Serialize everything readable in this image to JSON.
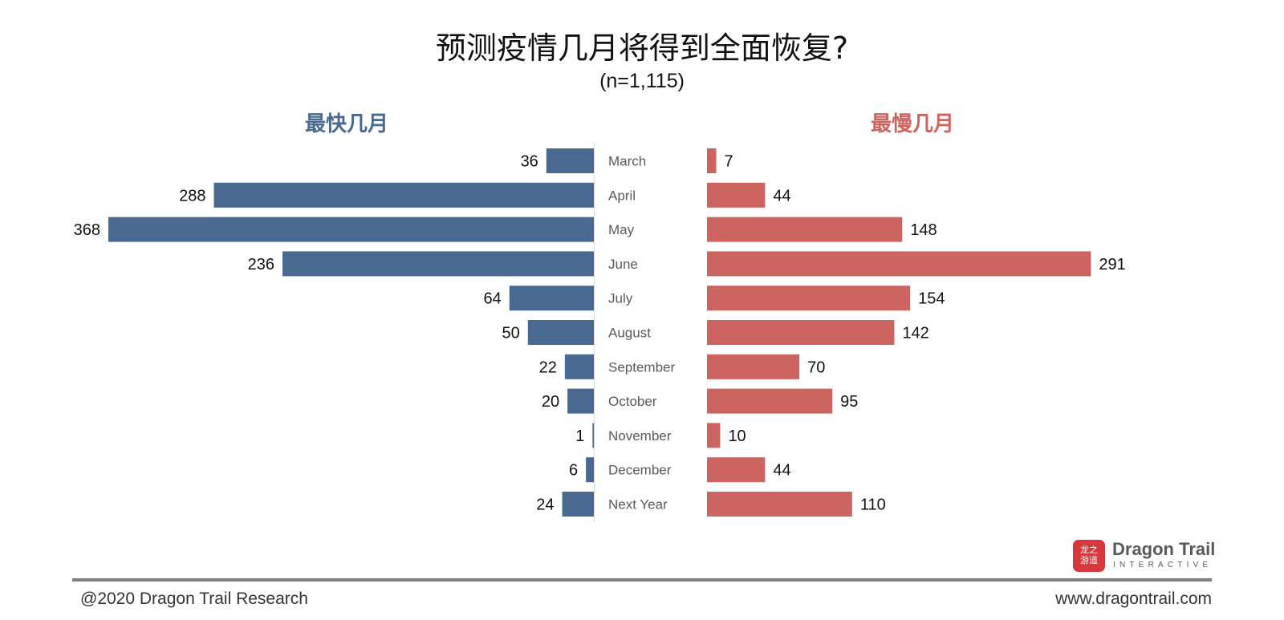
{
  "title": "预测疫情几月将得到全面恢复?",
  "subtitle": "(n=1,115)",
  "colors": {
    "left": "#4a6990",
    "right": "#cc6460",
    "axis": "#d9d9d9",
    "category_text": "#595959",
    "value_text": "#111111"
  },
  "chart_data": {
    "type": "bar",
    "orientation": "horizontal-butterfly",
    "title": "预测疫情几月将得到全面恢复?",
    "subtitle": "(n=1,115)",
    "categories": [
      "March",
      "April",
      "May",
      "June",
      "July",
      "August",
      "September",
      "October",
      "November",
      "December",
      "Next Year"
    ],
    "series": [
      {
        "name": "最快几月",
        "side": "left",
        "values": [
          36,
          288,
          368,
          236,
          64,
          50,
          22,
          20,
          1,
          6,
          24
        ]
      },
      {
        "name": "最慢几月",
        "side": "right",
        "values": [
          7,
          44,
          148,
          291,
          154,
          142,
          70,
          95,
          10,
          44,
          110
        ]
      }
    ],
    "xlim": [
      0,
      368
    ],
    "grid": false,
    "legend": "panel titles above each side"
  },
  "footer": {
    "left": "@2020 Dragon Trail Research",
    "right": "www.dragontrail.com"
  },
  "logo": {
    "name": "Dragon Trail",
    "tagline": "INTERACTIVE",
    "mark_text": "龙之\n游道"
  }
}
